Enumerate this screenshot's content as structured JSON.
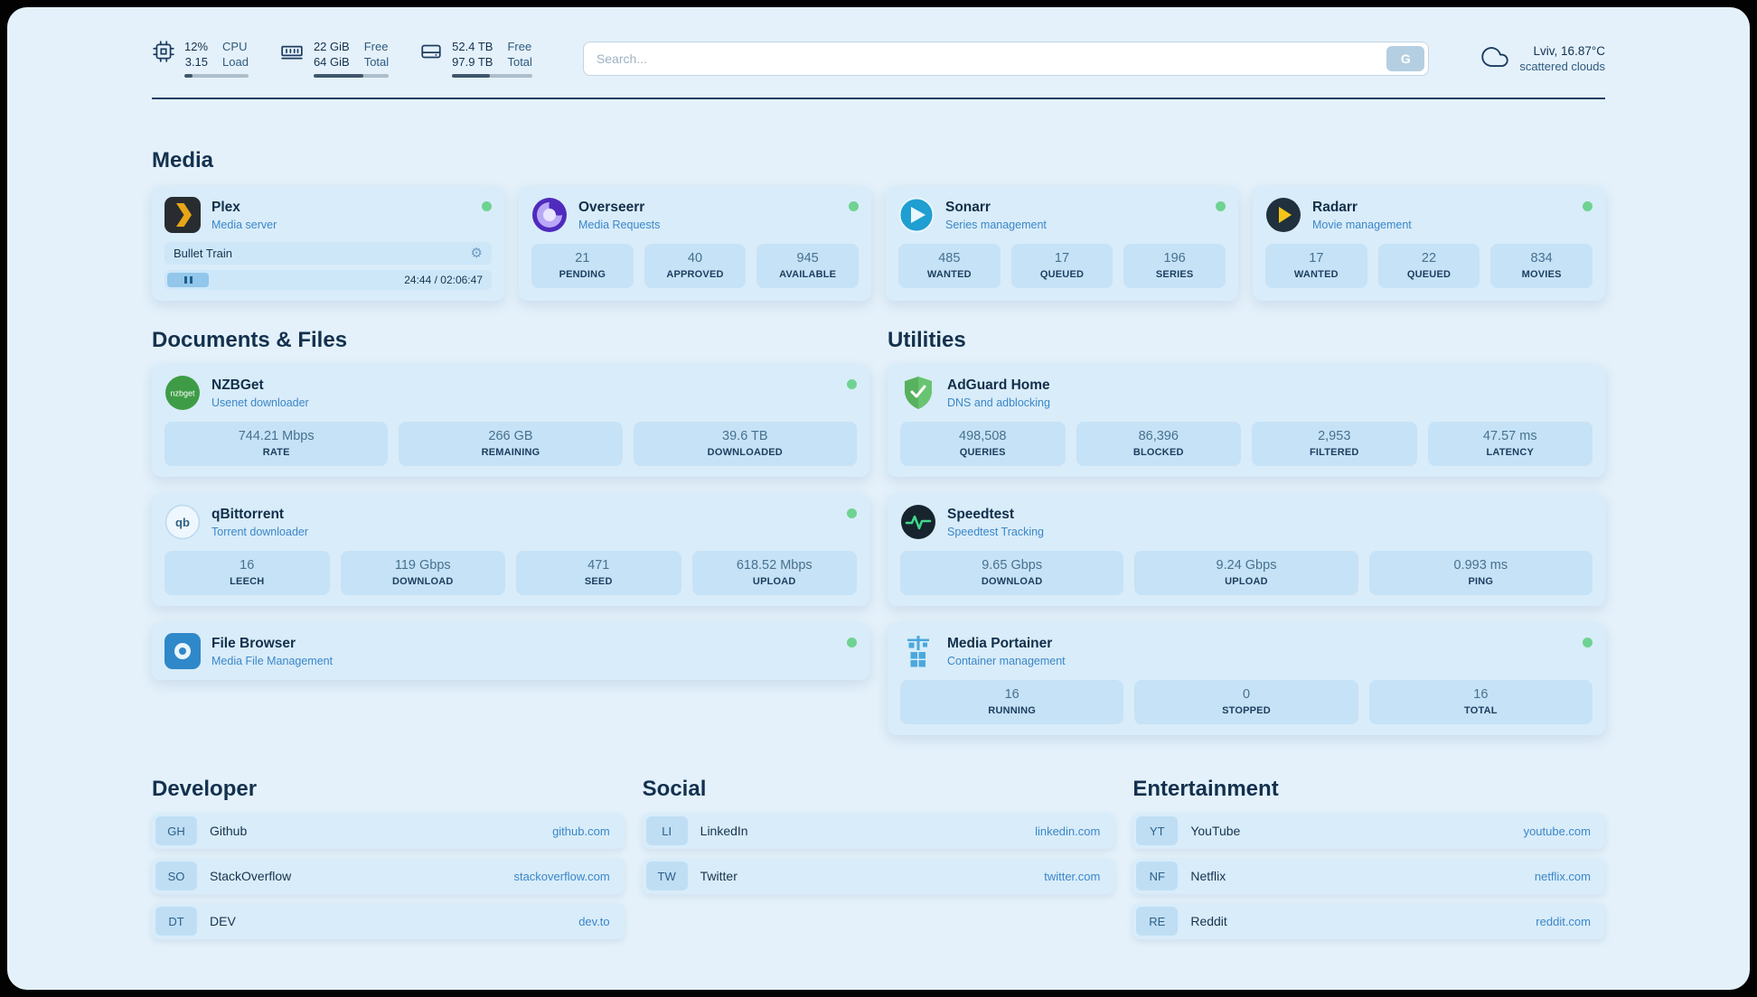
{
  "colors": {
    "panel": "#e4f1fb",
    "card": "#d9ecf9",
    "stat-box": "#c6e2f6",
    "accent": "#3a87c9",
    "status-online": "#6ed392",
    "heading": "#13314e"
  },
  "topbar": {
    "cpu": {
      "values": [
        "12%",
        "3.15"
      ],
      "labels": [
        "CPU",
        "Load"
      ],
      "progress": 12
    },
    "ram": {
      "values": [
        "22 GiB",
        "64 GiB"
      ],
      "labels": [
        "Free",
        "Total"
      ],
      "progress": 66
    },
    "disk": {
      "values": [
        "52.4 TB",
        "97.9 TB"
      ],
      "labels": [
        "Free",
        "Total"
      ],
      "progress": 47
    },
    "search": {
      "placeholder": "Search...",
      "button_label": "G"
    },
    "weather": {
      "location": "Lviv, 16.87°C",
      "condition": "scattered clouds"
    }
  },
  "media": {
    "title": "Media",
    "plex": {
      "name": "Plex",
      "subtitle": "Media server",
      "now_playing": {
        "title": "Bullet Train",
        "time": "24:44 / 02:06:47"
      }
    },
    "overseerr": {
      "name": "Overseerr",
      "subtitle": "Media Requests",
      "stats": [
        {
          "value": "21",
          "label": "PENDING"
        },
        {
          "value": "40",
          "label": "APPROVED"
        },
        {
          "value": "945",
          "label": "AVAILABLE"
        }
      ]
    },
    "sonarr": {
      "name": "Sonarr",
      "subtitle": "Series management",
      "stats": [
        {
          "value": "485",
          "label": "WANTED"
        },
        {
          "value": "17",
          "label": "QUEUED"
        },
        {
          "value": "196",
          "label": "SERIES"
        }
      ]
    },
    "radarr": {
      "name": "Radarr",
      "subtitle": "Movie management",
      "stats": [
        {
          "value": "17",
          "label": "WANTED"
        },
        {
          "value": "22",
          "label": "QUEUED"
        },
        {
          "value": "834",
          "label": "MOVIES"
        }
      ]
    }
  },
  "documents": {
    "title": "Documents & Files",
    "nzbget": {
      "name": "NZBGet",
      "subtitle": "Usenet downloader",
      "stats": [
        {
          "value": "744.21 Mbps",
          "label": "RATE"
        },
        {
          "value": "266 GB",
          "label": "REMAINING"
        },
        {
          "value": "39.6 TB",
          "label": "DOWNLOADED"
        }
      ]
    },
    "qbittorrent": {
      "name": "qBittorrent",
      "subtitle": "Torrent downloader",
      "stats": [
        {
          "value": "16",
          "label": "LEECH"
        },
        {
          "value": "119 Gbps",
          "label": "DOWNLOAD"
        },
        {
          "value": "471",
          "label": "SEED"
        },
        {
          "value": "618.52 Mbps",
          "label": "UPLOAD"
        }
      ]
    },
    "filebrowser": {
      "name": "File Browser",
      "subtitle": "Media File Management"
    }
  },
  "utilities": {
    "title": "Utilities",
    "adguard": {
      "name": "AdGuard Home",
      "subtitle": "DNS and adblocking",
      "stats": [
        {
          "value": "498,508",
          "label": "QUERIES"
        },
        {
          "value": "86,396",
          "label": "BLOCKED"
        },
        {
          "value": "2,953",
          "label": "FILTERED"
        },
        {
          "value": "47.57 ms",
          "label": "LATENCY"
        }
      ]
    },
    "speedtest": {
      "name": "Speedtest",
      "subtitle": "Speedtest Tracking",
      "stats": [
        {
          "value": "9.65 Gbps",
          "label": "DOWNLOAD"
        },
        {
          "value": "9.24 Gbps",
          "label": "UPLOAD"
        },
        {
          "value": "0.993 ms",
          "label": "PING"
        }
      ]
    },
    "portainer": {
      "name": "Media Portainer",
      "subtitle": "Container management",
      "stats": [
        {
          "value": "16",
          "label": "RUNNING"
        },
        {
          "value": "0",
          "label": "STOPPED"
        },
        {
          "value": "16",
          "label": "TOTAL"
        }
      ]
    }
  },
  "developer": {
    "title": "Developer",
    "bookmarks": [
      {
        "abbr": "GH",
        "name": "Github",
        "domain": "github.com"
      },
      {
        "abbr": "SO",
        "name": "StackOverflow",
        "domain": "stackoverflow.com"
      },
      {
        "abbr": "DT",
        "name": "DEV",
        "domain": "dev.to"
      }
    ]
  },
  "social": {
    "title": "Social",
    "bookmarks": [
      {
        "abbr": "LI",
        "name": "LinkedIn",
        "domain": "linkedin.com"
      },
      {
        "abbr": "TW",
        "name": "Twitter",
        "domain": "twitter.com"
      }
    ]
  },
  "entertainment": {
    "title": "Entertainment",
    "bookmarks": [
      {
        "abbr": "YT",
        "name": "YouTube",
        "domain": "youtube.com"
      },
      {
        "abbr": "NF",
        "name": "Netflix",
        "domain": "netflix.com"
      },
      {
        "abbr": "RE",
        "name": "Reddit",
        "domain": "reddit.com"
      }
    ]
  }
}
